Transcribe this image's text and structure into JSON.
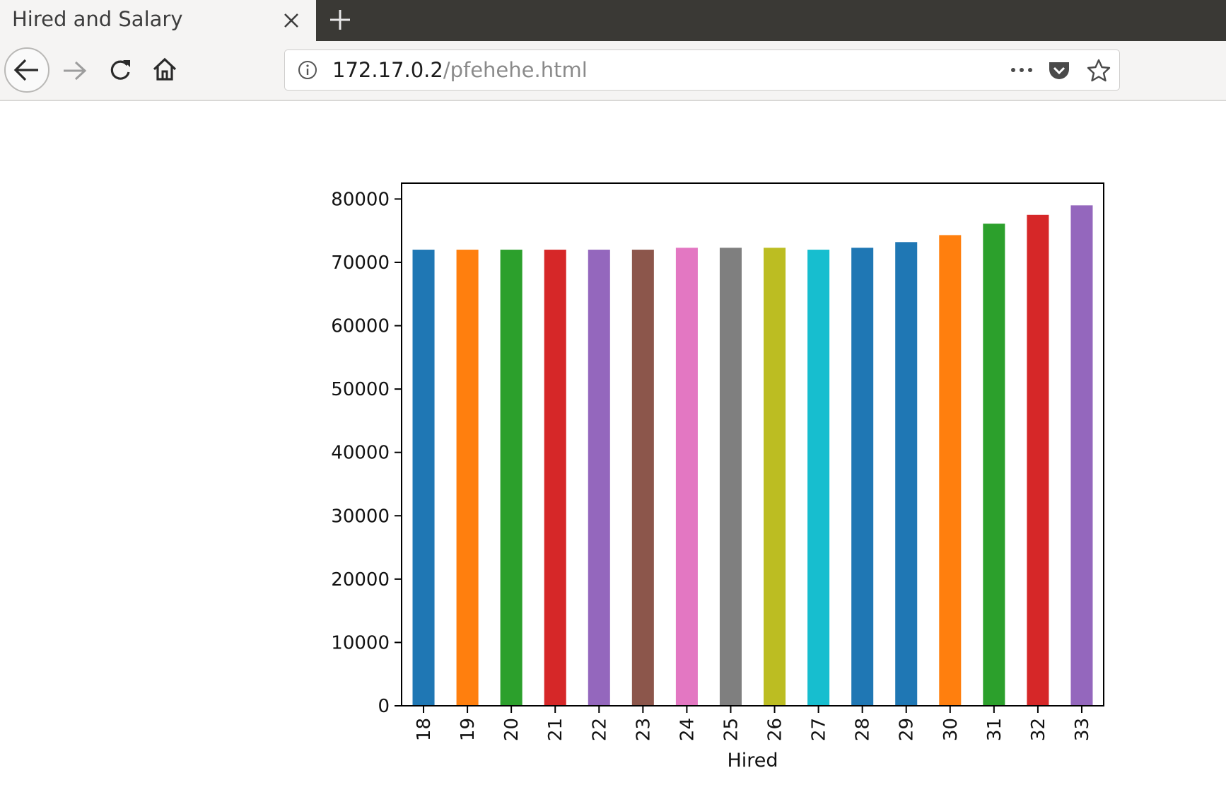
{
  "browser": {
    "tab_title": "Hired and Salary",
    "url_host": "172.17.0.2",
    "url_path": "/pfehehe.html",
    "icons": [
      "close-icon",
      "plus-icon",
      "back-arrow-icon",
      "forward-arrow-icon",
      "reload-icon",
      "home-icon",
      "info-icon",
      "more-icon",
      "pocket-icon",
      "star-icon"
    ]
  },
  "chart_data": {
    "type": "bar",
    "xlabel": "Hired",
    "ylabel": "",
    "categories": [
      "18",
      "19",
      "20",
      "21",
      "22",
      "23",
      "24",
      "25",
      "26",
      "27",
      "28",
      "29",
      "30",
      "31",
      "32",
      "33"
    ],
    "values": [
      72000,
      72000,
      72000,
      72000,
      72000,
      72000,
      72300,
      72300,
      72300,
      72000,
      72300,
      73200,
      74300,
      76100,
      77500,
      79000
    ],
    "colors": [
      "#1f77b4",
      "#ff7f0e",
      "#2ca02c",
      "#d62728",
      "#9467bd",
      "#8c564b",
      "#e377c2",
      "#7f7f7f",
      "#bcbd22",
      "#17becf",
      "#1f77b4",
      "#1f77b4",
      "#ff7f0e",
      "#2ca02c",
      "#d62728",
      "#9467bd"
    ],
    "ylim": [
      0,
      82500
    ],
    "yticks": [
      "0",
      "10000",
      "20000",
      "30000",
      "40000",
      "50000",
      "60000",
      "70000",
      "80000"
    ],
    "grid": false,
    "legend": "none"
  }
}
